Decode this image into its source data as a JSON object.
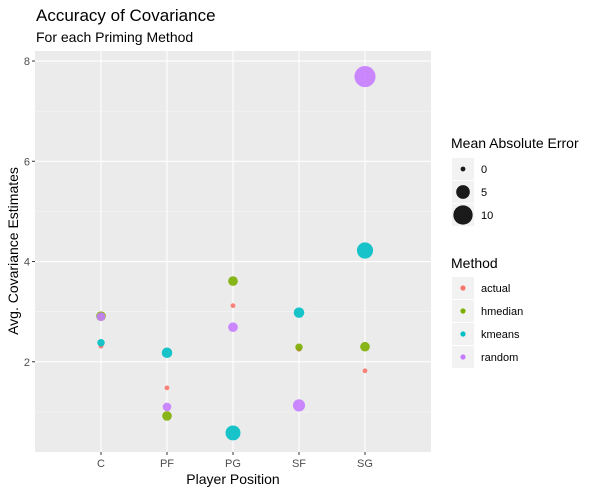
{
  "chart_data": {
    "type": "scatter",
    "title": "Accuracy of Covariance",
    "subtitle": "For each Priming Method",
    "xlabel": "Player Position",
    "ylabel": "Avg. Covariance Estimates",
    "categories": [
      "C",
      "PF",
      "PG",
      "SF",
      "SG"
    ],
    "ylim": [
      0.2,
      8.2
    ],
    "yticks": [
      2,
      4,
      6,
      8
    ],
    "grid": true,
    "legend_position": "right",
    "size_legend": {
      "title": "Mean Absolute Error",
      "values": [
        0,
        5,
        10
      ],
      "labels": [
        "0",
        "5",
        "10"
      ]
    },
    "color_legend": {
      "title": "Method",
      "entries": [
        {
          "name": "actual",
          "color": "#F8766D"
        },
        {
          "name": "hmedian",
          "color": "#7CAE00"
        },
        {
          "name": "kmeans",
          "color": "#00BFC4"
        },
        {
          "name": "random",
          "color": "#C77CFF"
        }
      ]
    },
    "series": [
      {
        "name": "actual",
        "color": "#F8766D",
        "points": [
          {
            "x": "C",
            "y": 2.31,
            "mae": 0
          },
          {
            "x": "PF",
            "y": 1.48,
            "mae": 0
          },
          {
            "x": "PG",
            "y": 3.12,
            "mae": 0
          },
          {
            "x": "SF",
            "y": 2.25,
            "mae": 0
          },
          {
            "x": "SG",
            "y": 1.82,
            "mae": 0
          }
        ]
      },
      {
        "name": "hmedian",
        "color": "#7CAE00",
        "points": [
          {
            "x": "C",
            "y": 2.91,
            "mae": 2.5
          },
          {
            "x": "PF",
            "y": 0.92,
            "mae": 2.5
          },
          {
            "x": "PG",
            "y": 3.61,
            "mae": 2.5
          },
          {
            "x": "SF",
            "y": 2.29,
            "mae": 1.5
          },
          {
            "x": "SG",
            "y": 2.3,
            "mae": 2.5
          }
        ]
      },
      {
        "name": "kmeans",
        "color": "#00BFC4",
        "points": [
          {
            "x": "C",
            "y": 2.38,
            "mae": 1.5
          },
          {
            "x": "PF",
            "y": 2.18,
            "mae": 3
          },
          {
            "x": "PG",
            "y": 0.58,
            "mae": 6
          },
          {
            "x": "SF",
            "y": 2.98,
            "mae": 3
          },
          {
            "x": "SG",
            "y": 4.22,
            "mae": 7
          }
        ]
      },
      {
        "name": "random",
        "color": "#C77CFF",
        "points": [
          {
            "x": "C",
            "y": 2.9,
            "mae": 2
          },
          {
            "x": "PF",
            "y": 1.1,
            "mae": 2
          },
          {
            "x": "PG",
            "y": 2.69,
            "mae": 2.5
          },
          {
            "x": "SF",
            "y": 1.13,
            "mae": 4
          },
          {
            "x": "SG",
            "y": 7.69,
            "mae": 12
          }
        ]
      }
    ]
  }
}
